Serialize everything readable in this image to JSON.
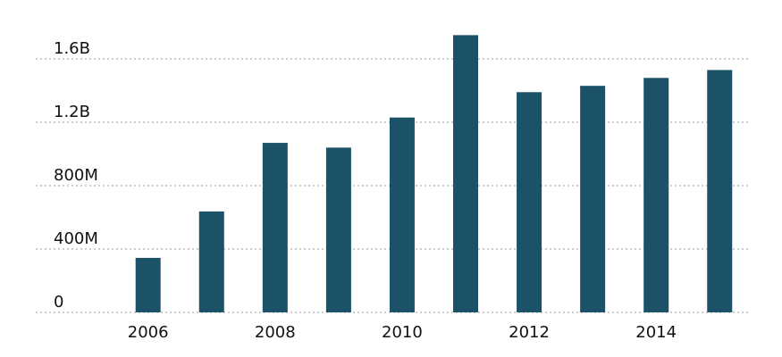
{
  "chart_data": {
    "type": "bar",
    "x": [
      2006,
      2007,
      2008,
      2009,
      2010,
      2011,
      2012,
      2013,
      2014,
      2015
    ],
    "values": [
      344000000,
      637000000,
      1070000000,
      1040000000,
      1230000000,
      1750000000,
      1390000000,
      1430000000,
      1480000000,
      1530000000
    ],
    "color": "#1b5268",
    "xlim": [
      2004.4,
      2015.7
    ],
    "xticks": [
      2006,
      2008,
      2010,
      2012,
      2014
    ],
    "ylim": [
      0,
      1600000000
    ],
    "yticks": [
      {
        "value": 0,
        "label": "0"
      },
      {
        "value": 400000000,
        "label": "400M"
      },
      {
        "value": 800000000,
        "label": "800M"
      },
      {
        "value": 1200000000,
        "label": "1.2B"
      },
      {
        "value": 1600000000,
        "label": "1.6B"
      }
    ],
    "grid": true
  }
}
